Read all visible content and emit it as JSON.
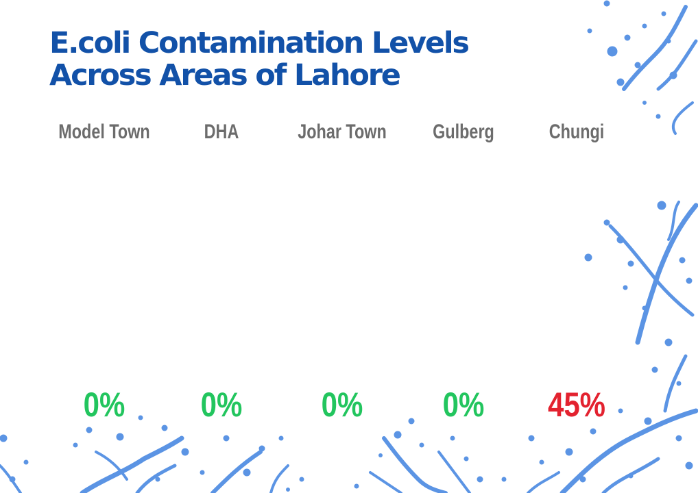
{
  "title_lines": [
    "E.coli Contamination Levels",
    "Across Areas of Lahore"
  ],
  "colors": {
    "title": "#1251a8",
    "category": "#6c6c6c",
    "value_zero": "#22c55e",
    "value_positive": "#e3222f",
    "splash": "#3f82e0"
  },
  "chart_data": {
    "type": "table",
    "title": "E.coli Contamination Levels Across Areas of Lahore",
    "categories": [
      "Model Town",
      "DHA",
      "Johar Town",
      "Gulberg",
      "Chungi"
    ],
    "values": [
      0,
      0,
      0,
      0,
      45
    ],
    "value_labels": [
      "0%",
      "0%",
      "0%",
      "0%",
      "45%"
    ],
    "unit": "%"
  }
}
